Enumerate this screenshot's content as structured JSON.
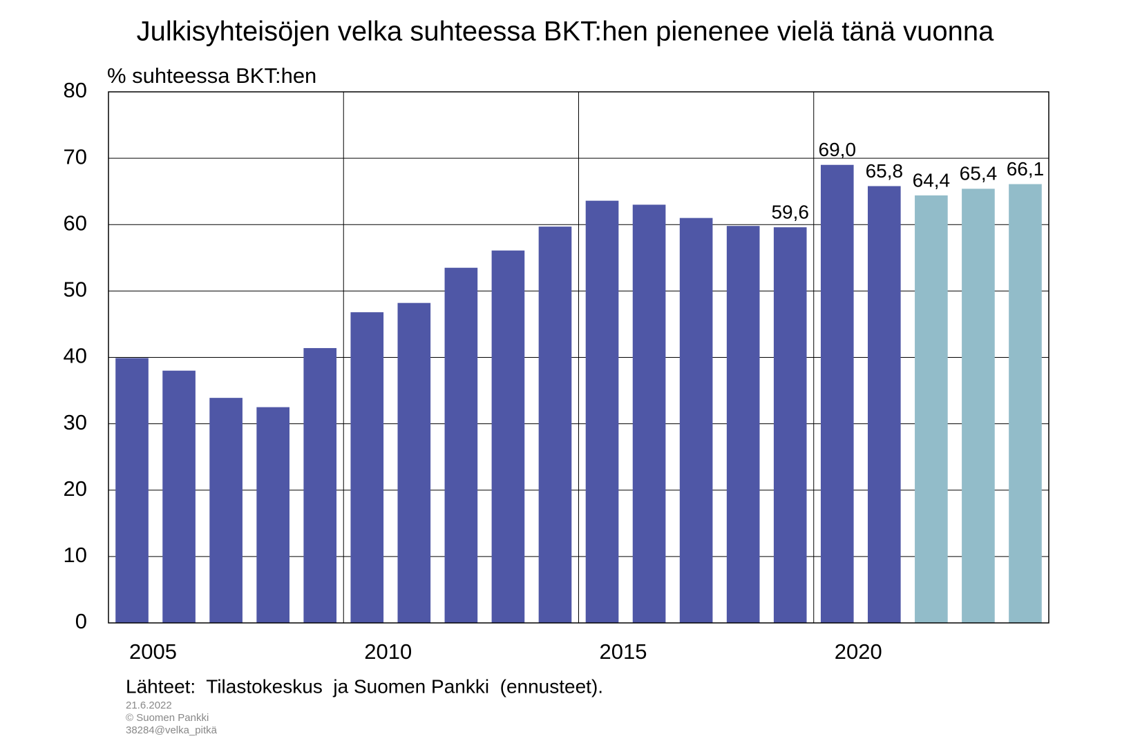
{
  "chart_data": {
    "type": "bar",
    "title": "Julkisyhteisöjen velka suhteessa BKT:hen pienenee vielä tänä vuonna",
    "y_label": "% suhteessa BKT:hen",
    "categories": [
      "2005",
      null,
      null,
      null,
      null,
      "2010",
      null,
      null,
      null,
      null,
      "2015",
      null,
      null,
      null,
      null,
      "2020",
      null,
      null,
      null,
      null
    ],
    "values": [
      39.9,
      38.0,
      33.9,
      32.5,
      41.4,
      46.8,
      48.2,
      53.5,
      56.1,
      59.7,
      63.6,
      63.0,
      61.0,
      59.8,
      59.6,
      69.0,
      65.8,
      64.4,
      65.4,
      66.1
    ],
    "value_labels": [
      null,
      null,
      null,
      null,
      null,
      null,
      null,
      null,
      null,
      null,
      null,
      null,
      null,
      null,
      "59,6",
      "69,0",
      "65,8",
      "64,4",
      "65,4",
      "66,1"
    ],
    "colors": [
      "#4f57a6",
      "#4f57a6",
      "#4f57a6",
      "#4f57a6",
      "#4f57a6",
      "#4f57a6",
      "#4f57a6",
      "#4f57a6",
      "#4f57a6",
      "#4f57a6",
      "#4f57a6",
      "#4f57a6",
      "#4f57a6",
      "#4f57a6",
      "#4f57a6",
      "#4f57a6",
      "#4f57a6",
      "#92bcc9",
      "#92bcc9",
      "#92bcc9"
    ],
    "ylim": [
      0,
      80
    ],
    "yticks": [
      0,
      10,
      20,
      30,
      40,
      50,
      60,
      70,
      80
    ],
    "grid": true,
    "x_grid": true,
    "source": "Lähteet:  Tilastokeskus  ja Suomen Pankki  (ennusteet).",
    "notes": [
      "21.6.2022",
      "© Suomen Pankki",
      "38284@velka_pitkä"
    ]
  }
}
